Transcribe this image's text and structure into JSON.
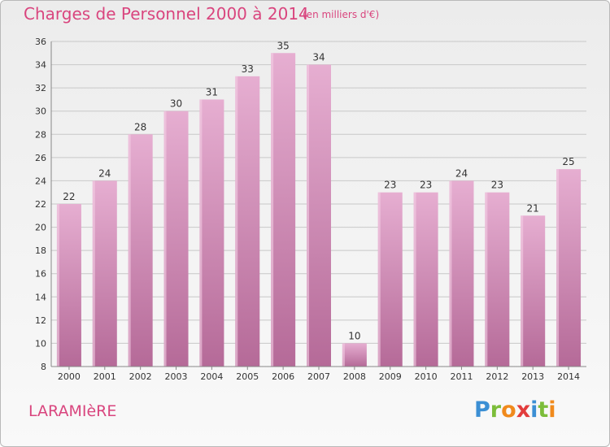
{
  "header": {
    "title": "Charges de Personnel 2000 à 2014",
    "subtitle": "(en milliers d'€)"
  },
  "footer": {
    "commune": "LARAMIèRE",
    "logo_letters": [
      "P",
      "r",
      "o",
      "x",
      "i",
      "t",
      "i"
    ],
    "logo_colors": [
      "#3b8fd4",
      "#7cbd3a",
      "#f08a1c",
      "#e23c3c",
      "#3b8fd4",
      "#7cbd3a",
      "#f08a1c"
    ]
  },
  "colors": {
    "bar_top": "#e6aed1",
    "bar_bottom": "#b56a98",
    "grid": "#c8c8c8"
  },
  "chart_data": {
    "type": "bar",
    "title": "Charges de Personnel 2000 à 2014",
    "subtitle": "(en milliers d'€)",
    "categories": [
      "2000",
      "2001",
      "2002",
      "2003",
      "2004",
      "2005",
      "2006",
      "2007",
      "2008",
      "2009",
      "2010",
      "2011",
      "2012",
      "2013",
      "2014"
    ],
    "values": [
      22,
      24,
      28,
      30,
      31,
      33,
      35,
      34,
      10,
      23,
      23,
      24,
      23,
      21,
      25
    ],
    "ylim": [
      8,
      36
    ],
    "yticks": [
      8,
      10,
      12,
      14,
      16,
      18,
      20,
      22,
      24,
      26,
      28,
      30,
      32,
      34,
      36
    ],
    "grid": true,
    "data_labels": true
  }
}
